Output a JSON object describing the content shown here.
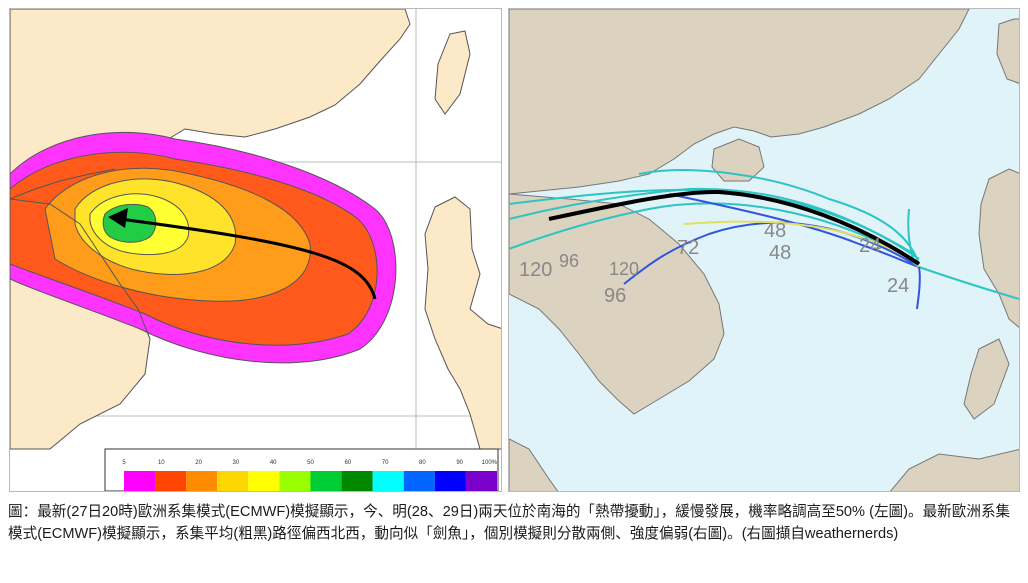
{
  "left_map": {
    "colorbar": {
      "tick_labels": [
        "5",
        "10",
        "20",
        "30",
        "40",
        "50",
        "60",
        "70",
        "80",
        "90",
        "100%"
      ],
      "colors": [
        "#ff00ff",
        "#ff4500",
        "#ff8c00",
        "#ffd700",
        "#ffff00",
        "#99ff00",
        "#00cc33",
        "#008800",
        "#00ffff",
        "#0066ff",
        "#0000ff",
        "#7a00cc"
      ]
    },
    "probability_fill_colors": {
      "outer": "#ff33ff",
      "band_2": "#ff5a1c",
      "band_3": "#ff9c1a",
      "band_4": "#ffe22a",
      "band_5": "#ffff33",
      "core": "#22cc44"
    },
    "land_color": "#fbe9c8",
    "sea_color": "#ffffff",
    "track_arrow_color": "#000000"
  },
  "right_map": {
    "sea_color": "#dff3f8",
    "land_color": "#dcd2c0",
    "hour_labels": [
      "120",
      "96",
      "120",
      "96",
      "72",
      "48",
      "48",
      "24",
      "24"
    ],
    "mean_track_color": "#000000",
    "member_colors": [
      "#2ec4c4",
      "#3355dd",
      "#6b6bff",
      "#e0e060"
    ]
  },
  "caption": "圖：最新(27日20時)歐洲系集模式(ECMWF)模擬顯示，今、明(28、29日)兩天位於南海的「熱帶擾動」，緩慢發展，機率略調高至50% (左圖)。最新歐洲系集模式(ECMWF)模擬顯示，系集平均(粗黑)路徑偏西北西，動向似「劍魚」，個別模擬則分散兩側、強度偏弱(右圖)。(右圖擷自weathernerds)"
}
